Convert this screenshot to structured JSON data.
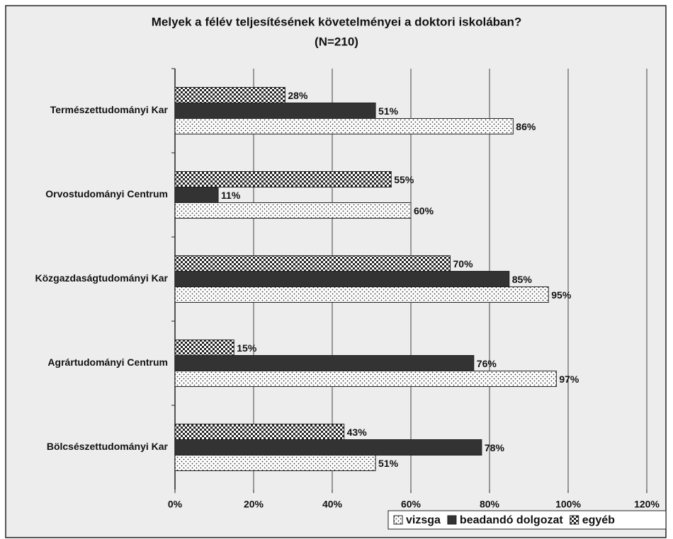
{
  "chart_data": {
    "type": "hbar",
    "title": "Melyek a félév teljesítésének követelményei a doktori iskolában?",
    "subtitle": "(N=210)",
    "categories": [
      "Természettudományi Kar",
      "Orvostudományi Centrum",
      "Közgazdaságtudományi Kar",
      "Agrártudományi Centrum",
      "Bölcsészettudományi Kar"
    ],
    "series": [
      {
        "name": "vizsga",
        "color": "#ffffff",
        "fill_pattern": "dots",
        "values": [
          86,
          60,
          95,
          97,
          51
        ],
        "value_labels": [
          "86%",
          "60%",
          "95%",
          "97%",
          "51%"
        ]
      },
      {
        "name": "beadandó dolgozat",
        "color": "#333333",
        "fill_pattern": "solid",
        "values": [
          51,
          11,
          85,
          76,
          78
        ],
        "value_labels": [
          "51%",
          "11%",
          "85%",
          "76%",
          "78%"
        ]
      },
      {
        "name": "egyéb",
        "color": "#222222",
        "fill_pattern": "checker",
        "values": [
          28,
          55,
          70,
          15,
          43
        ],
        "value_labels": [
          "28%",
          "55%",
          "70%",
          "15%",
          "43%"
        ]
      }
    ],
    "xlim": [
      0,
      120
    ],
    "xticks": [
      {
        "value": 0,
        "label": "0%"
      },
      {
        "value": 20,
        "label": "20%"
      },
      {
        "value": 40,
        "label": "40%"
      },
      {
        "value": 60,
        "label": "60%"
      },
      {
        "value": 80,
        "label": "80%"
      },
      {
        "value": 100,
        "label": "100%"
      },
      {
        "value": 120,
        "label": "120%"
      }
    ],
    "grid": true,
    "legend": "bottom-right"
  }
}
